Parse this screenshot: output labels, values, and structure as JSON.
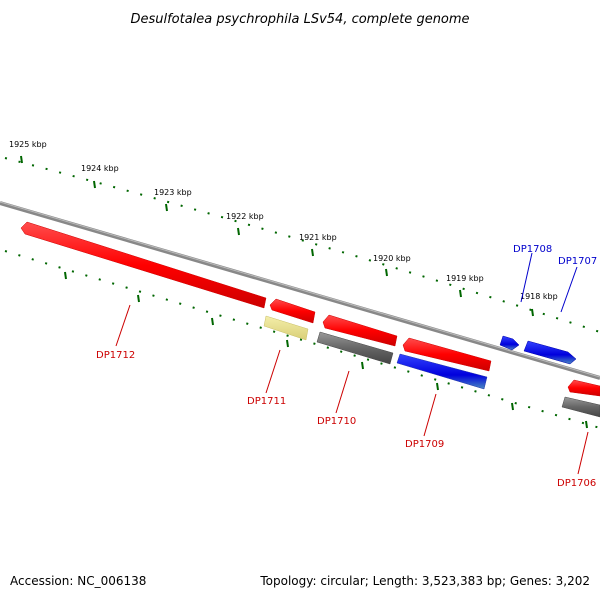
{
  "title": "Desulfotalea psychrophila LSv54, complete genome",
  "scale_labels": [
    "1925 kbp",
    "1924 kbp",
    "1923 kbp",
    "1922 kbp",
    "1921 kbp",
    "1920 kbp",
    "1919 kbp",
    "1918 kbp"
  ],
  "genes": [
    {
      "id": "DP1712",
      "strand": "minus",
      "row": "outer",
      "color": "#ff0000",
      "label_color": "#cc0000"
    },
    {
      "id": "DP1711",
      "strand": "minus",
      "row": "outer",
      "color": "#ff0000",
      "label_color": "#cc0000"
    },
    {
      "id": "DP1710",
      "strand": "minus",
      "row": "outer",
      "color": "#ff0000",
      "label_color": "#cc0000"
    },
    {
      "id": "DP1709",
      "strand": "minus",
      "row": "outer",
      "color": "#ff0000",
      "label_color": "#cc0000"
    },
    {
      "id": "DP1708",
      "strand": "plus",
      "row": "inner",
      "color": "#0000ff",
      "label_color": "#0000cc"
    },
    {
      "id": "DP1707",
      "strand": "plus",
      "row": "inner",
      "color": "#0000ff",
      "label_color": "#0000cc"
    },
    {
      "id": "DP1706",
      "strand": "minus",
      "row": "outer",
      "color": "#ff0000",
      "label_color": "#cc0000"
    }
  ],
  "feature_colors": {
    "grey": "#666666",
    "yellow": "#e8e08a",
    "blue": "#2233cc",
    "backbone": "#888888",
    "ticks": "#006600"
  },
  "footer": {
    "accession": "Accession: NC_006138",
    "summary": "Topology: circular; Length: 3,523,383 bp; Genes: 3,202"
  }
}
